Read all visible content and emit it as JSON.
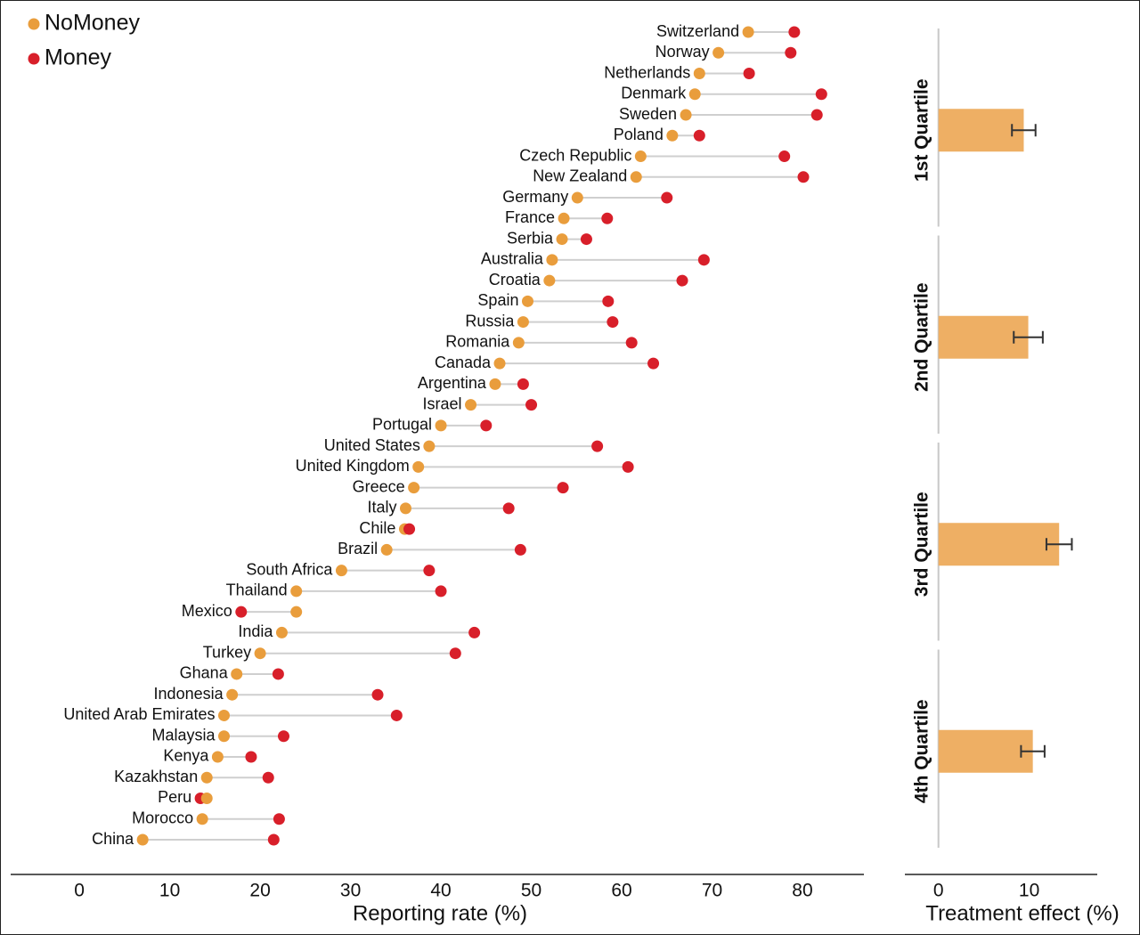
{
  "chart_data": [
    {
      "type": "dumbbell",
      "legend": "top-left",
      "categories": [
        "Switzerland",
        "Norway",
        "Netherlands",
        "Denmark",
        "Sweden",
        "Poland",
        "Czech Republic",
        "New Zealand",
        "Germany",
        "France",
        "Serbia",
        "Australia",
        "Croatia",
        "Spain",
        "Russia",
        "Romania",
        "Canada",
        "Argentina",
        "Israel",
        "Portugal",
        "United States",
        "United Kingdom",
        "Greece",
        "Italy",
        "Chile",
        "Brazil",
        "South Africa",
        "Thailand",
        "Mexico",
        "India",
        "Turkey",
        "Ghana",
        "Indonesia",
        "United Arab Emirates",
        "Malaysia",
        "Kenya",
        "Kazakhstan",
        "Peru",
        "Morocco",
        "China"
      ],
      "series": [
        {
          "name": "NoMoney",
          "color": "#e99d3c",
          "values": [
            74.0,
            70.7,
            68.6,
            68.1,
            67.1,
            65.6,
            62.1,
            61.6,
            55.1,
            53.6,
            53.4,
            52.3,
            52.0,
            49.6,
            49.1,
            48.6,
            46.5,
            46.0,
            43.3,
            40.0,
            38.7,
            37.5,
            37.0,
            36.1,
            36.0,
            34.0,
            29.0,
            24.0,
            24.0,
            22.4,
            20.0,
            17.4,
            16.9,
            16.0,
            16.0,
            15.3,
            14.1,
            14.1,
            13.6,
            7.0
          ]
        },
        {
          "name": "Money",
          "color": "#d81f2a",
          "values": [
            79.1,
            78.7,
            74.1,
            82.1,
            81.6,
            68.6,
            78.0,
            80.1,
            65.0,
            58.4,
            56.1,
            69.1,
            66.7,
            58.5,
            59.0,
            61.1,
            63.5,
            49.1,
            50.0,
            45.0,
            57.3,
            60.7,
            53.5,
            47.5,
            36.5,
            48.8,
            38.7,
            40.0,
            17.9,
            43.7,
            41.6,
            22.0,
            33.0,
            35.1,
            22.6,
            19.0,
            20.9,
            13.4,
            22.1,
            21.5
          ]
        }
      ],
      "xlabel": "Reporting rate (%)",
      "xlim": [
        -7.6,
        86.8
      ],
      "xticks": [
        0,
        10,
        20,
        30,
        40,
        50,
        60,
        70,
        80
      ]
    },
    {
      "type": "bar",
      "categories": [
        "1st Quartile",
        "2nd Quartile",
        "3rd Quartile",
        "4th Quartile"
      ],
      "values": [
        9.4,
        9.9,
        13.3,
        10.4
      ],
      "errors": [
        1.3,
        1.6,
        1.4,
        1.3
      ],
      "color": "#eeaf64",
      "xlabel": "Treatment effect (%)",
      "xlim": [
        -3.7,
        17.5
      ],
      "xticks": [
        0,
        10
      ]
    }
  ]
}
